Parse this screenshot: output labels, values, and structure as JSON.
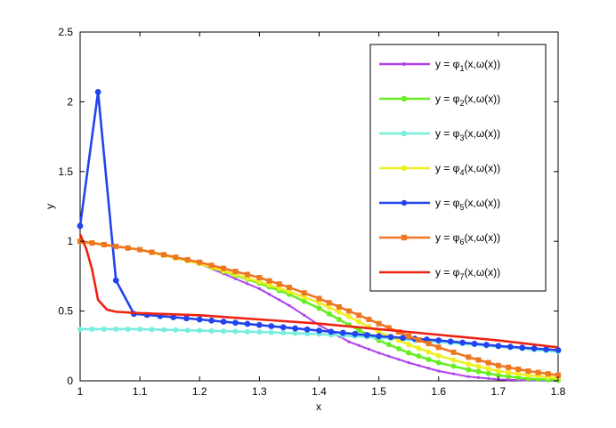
{
  "chart_data": {
    "type": "line",
    "xlabel": "x",
    "ylabel": "y",
    "xlim": [
      1,
      1.8
    ],
    "ylim": [
      0,
      2.5
    ],
    "xticks": [
      "1",
      "1.1",
      "1.2",
      "1.3",
      "1.4",
      "1.5",
      "1.6",
      "1.7",
      "1.8"
    ],
    "yticks": [
      "0",
      "0.5",
      "1",
      "1.5",
      "2",
      "2.5"
    ],
    "grid": false,
    "legend_position": "top-right",
    "series": [
      {
        "name": "y = φ1(x,ω(x))",
        "label_base": "y = φ",
        "label_sub": "1",
        "label_tail": "(x,ω(x))",
        "color": "#b040ee",
        "marker": "dot",
        "points": [
          [
            1.0,
            1.0
          ],
          [
            1.1,
            0.94
          ],
          [
            1.2,
            0.84
          ],
          [
            1.3,
            0.66
          ],
          [
            1.35,
            0.54
          ],
          [
            1.4,
            0.4
          ],
          [
            1.45,
            0.28
          ],
          [
            1.5,
            0.2
          ],
          [
            1.55,
            0.13
          ],
          [
            1.6,
            0.07
          ],
          [
            1.65,
            0.03
          ],
          [
            1.7,
            0.01
          ],
          [
            1.75,
            0.003
          ],
          [
            1.8,
            0.0
          ]
        ]
      },
      {
        "name": "y = φ2(x,ω(x))",
        "label_base": "y = φ",
        "label_sub": "2",
        "label_tail": "(x,ω(x))",
        "color": "#66ee22",
        "marker": "circle",
        "points": [
          [
            1.0,
            1.0
          ],
          [
            1.1,
            0.94
          ],
          [
            1.2,
            0.84
          ],
          [
            1.3,
            0.7
          ],
          [
            1.35,
            0.62
          ],
          [
            1.4,
            0.52
          ],
          [
            1.45,
            0.4
          ],
          [
            1.5,
            0.29
          ],
          [
            1.55,
            0.2
          ],
          [
            1.6,
            0.13
          ],
          [
            1.65,
            0.08
          ],
          [
            1.7,
            0.04
          ],
          [
            1.75,
            0.015
          ],
          [
            1.8,
            0.005
          ]
        ]
      },
      {
        "name": "y = φ3(x,ω(x))",
        "label_base": "y = φ",
        "label_sub": "3",
        "label_tail": "(x,ω(x))",
        "color": "#77eedd",
        "marker": "circle",
        "points": [
          [
            1.0,
            0.37
          ],
          [
            1.1,
            0.37
          ],
          [
            1.2,
            0.36
          ],
          [
            1.3,
            0.35
          ],
          [
            1.4,
            0.335
          ],
          [
            1.5,
            0.31
          ],
          [
            1.6,
            0.28
          ],
          [
            1.7,
            0.245
          ],
          [
            1.8,
            0.21
          ]
        ]
      },
      {
        "name": "y = φ4(x,ω(x))",
        "label_base": "y = φ",
        "label_sub": "4",
        "label_tail": "(x,ω(x))",
        "color": "#eeee22",
        "marker": "circle",
        "points": [
          [
            1.0,
            1.0
          ],
          [
            1.1,
            0.94
          ],
          [
            1.2,
            0.84
          ],
          [
            1.3,
            0.71
          ],
          [
            1.35,
            0.64
          ],
          [
            1.4,
            0.56
          ],
          [
            1.45,
            0.46
          ],
          [
            1.5,
            0.35
          ],
          [
            1.55,
            0.26
          ],
          [
            1.6,
            0.18
          ],
          [
            1.65,
            0.12
          ],
          [
            1.7,
            0.07
          ],
          [
            1.75,
            0.04
          ],
          [
            1.8,
            0.02
          ]
        ]
      },
      {
        "name": "y = φ5(x,ω(x))",
        "label_base": "y = φ",
        "label_sub": "5",
        "label_tail": "(x,ω(x))",
        "color": "#2244ee",
        "marker": "dot-large",
        "points": [
          [
            1.0,
            1.11
          ],
          [
            1.03,
            2.07
          ],
          [
            1.06,
            0.72
          ],
          [
            1.09,
            0.48
          ],
          [
            1.2,
            0.44
          ],
          [
            1.3,
            0.4
          ],
          [
            1.4,
            0.36
          ],
          [
            1.5,
            0.32
          ],
          [
            1.6,
            0.29
          ],
          [
            1.7,
            0.25
          ],
          [
            1.8,
            0.22
          ]
        ]
      },
      {
        "name": "y = φ6(x,ω(x))",
        "label_base": "y = φ",
        "label_sub": "6",
        "label_tail": "(x,ω(x))",
        "color": "#ee7722",
        "marker": "square",
        "points": [
          [
            1.0,
            1.0
          ],
          [
            1.1,
            0.94
          ],
          [
            1.2,
            0.85
          ],
          [
            1.3,
            0.74
          ],
          [
            1.35,
            0.67
          ],
          [
            1.4,
            0.59
          ],
          [
            1.45,
            0.5
          ],
          [
            1.5,
            0.41
          ],
          [
            1.55,
            0.32
          ],
          [
            1.6,
            0.24
          ],
          [
            1.65,
            0.17
          ],
          [
            1.7,
            0.11
          ],
          [
            1.75,
            0.07
          ],
          [
            1.8,
            0.04
          ]
        ]
      },
      {
        "name": "y = φ7(x,ω(x))",
        "label_base": "y = φ",
        "label_sub": "7",
        "label_tail": "(x,ω(x))",
        "color": "#ee2211",
        "marker": "none",
        "points": [
          [
            1.0,
            1.05
          ],
          [
            1.01,
            0.95
          ],
          [
            1.02,
            0.8
          ],
          [
            1.03,
            0.58
          ],
          [
            1.045,
            0.51
          ],
          [
            1.06,
            0.495
          ],
          [
            1.1,
            0.485
          ],
          [
            1.2,
            0.47
          ],
          [
            1.3,
            0.44
          ],
          [
            1.4,
            0.41
          ],
          [
            1.5,
            0.37
          ],
          [
            1.6,
            0.33
          ],
          [
            1.7,
            0.29
          ],
          [
            1.8,
            0.24
          ]
        ]
      }
    ]
  }
}
